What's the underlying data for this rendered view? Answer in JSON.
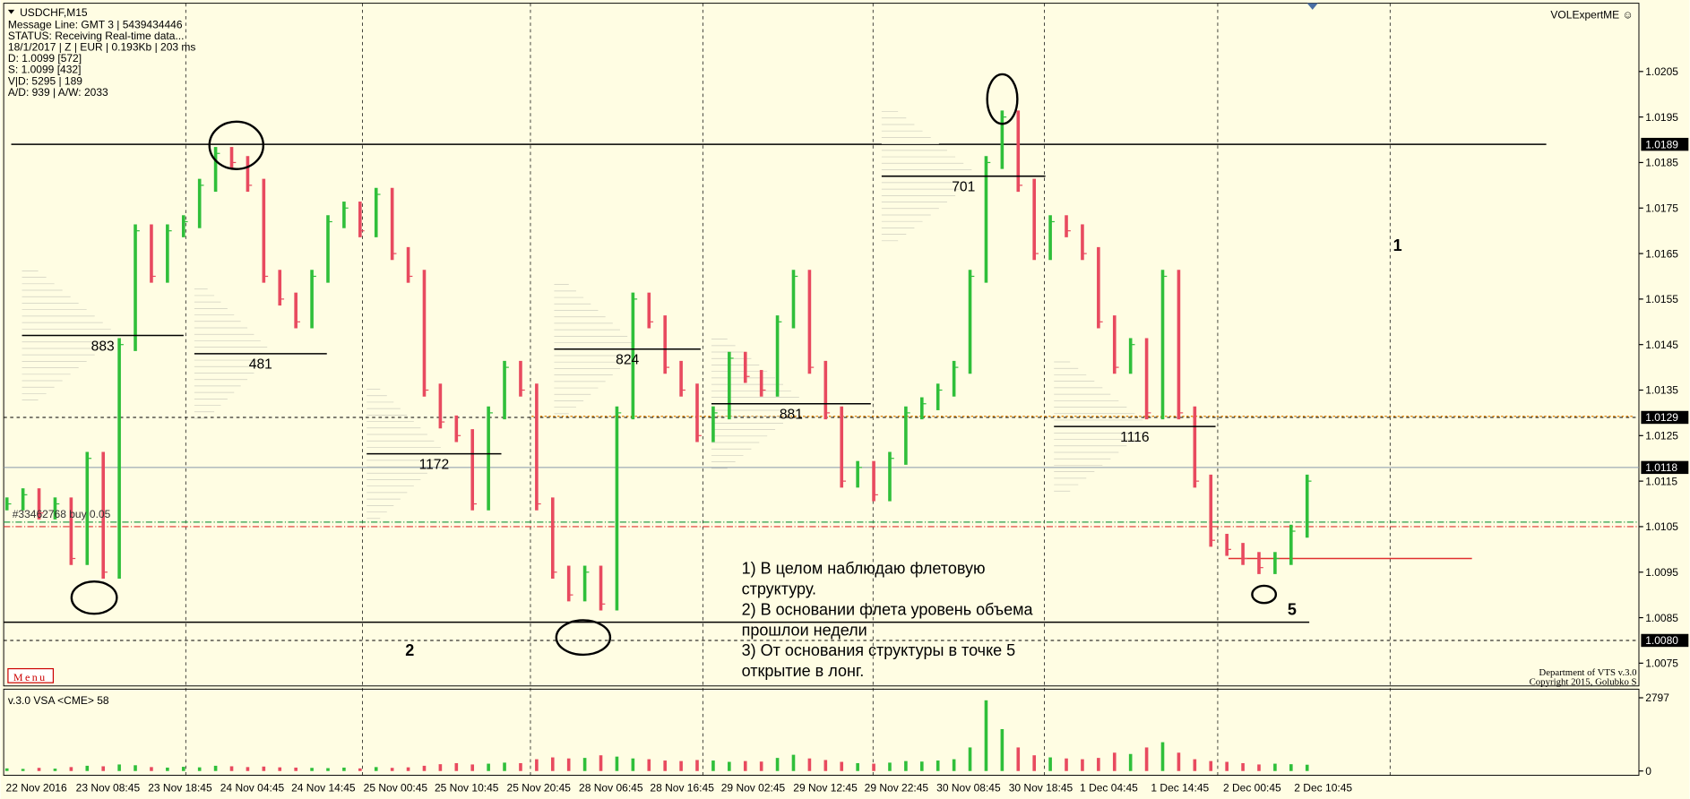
{
  "header": {
    "symbol_timeframe": "USDCHF,M15",
    "info_lines": [
      "Message Line: GMT 3 | 5439434446",
      "STATUS:  Receiving Real-time data...",
      "18/1/2017 | Z | EUR | 0.193Kb | 203 ms",
      "D: 1.0099  [572]",
      "S: 1.0099  [432]",
      "V|D: 5295 | 189",
      "A/D: 939 | A/W: 2033"
    ],
    "indicator": "VOLExpertME ☺"
  },
  "price_axis": {
    "ylim": [
      1.007,
      1.022
    ],
    "yticks": [
      1.0205,
      1.0195,
      1.0185,
      1.0175,
      1.0165,
      1.0155,
      1.0145,
      1.0135,
      1.0125,
      1.0115,
      1.0105,
      1.0095,
      1.0085,
      1.0075
    ],
    "levels": [
      {
        "value": 1.0189,
        "label": "1.0189"
      },
      {
        "value": 1.0129,
        "label": "1.0129"
      },
      {
        "value": 1.0118,
        "label": "1.0118"
      },
      {
        "value": 1.008,
        "label": "1.0080"
      }
    ],
    "base_line": 1.0084,
    "green_line": 1.0106,
    "red_line": 1.0105,
    "red_short_line": 1.0098
  },
  "time_axis": [
    "22 Nov 2016",
    "23 Nov 08:45",
    "23 Nov 18:45",
    "24 Nov 04:45",
    "24 Nov 14:45",
    "25 Nov 00:45",
    "25 Nov 10:45",
    "25 Nov 20:45",
    "28 Nov 06:45",
    "28 Nov 16:45",
    "29 Nov 02:45",
    "29 Nov 12:45",
    "29 Nov 22:45",
    "30 Nov 08:45",
    "30 Nov 18:45",
    "1 Dec 04:45",
    "1 Dec 14:45",
    "2 Dec 00:45",
    "2 Dec 10:45"
  ],
  "price_series": {
    "values": [
      1.011,
      1.0112,
      1.0108,
      1.011,
      1.0098,
      1.012,
      1.0095,
      1.0145,
      1.017,
      1.016,
      1.017,
      1.0172,
      1.018,
      1.0187,
      1.0185,
      1.018,
      1.016,
      1.0155,
      1.015,
      1.016,
      1.0172,
      1.0175,
      1.017,
      1.0178,
      1.0165,
      1.016,
      1.0135,
      1.0128,
      1.0125,
      1.011,
      1.013,
      1.014,
      1.0135,
      1.011,
      1.0095,
      1.009,
      1.0095,
      1.0088,
      1.013,
      1.0155,
      1.015,
      1.014,
      1.0135,
      1.0125,
      1.013,
      1.0142,
      1.0138,
      1.0135,
      1.015,
      1.016,
      1.014,
      1.013,
      1.0115,
      1.0118,
      1.0112,
      1.012,
      1.013,
      1.0132,
      1.0135,
      1.014,
      1.016,
      1.0185,
      1.0195,
      1.018,
      1.0165,
      1.0172,
      1.017,
      1.0165,
      1.015,
      1.014,
      1.0145,
      1.013,
      1.016,
      1.013,
      1.0115,
      1.0102,
      1.01,
      1.0098,
      1.0096,
      1.0098,
      1.0104,
      1.0115
    ]
  },
  "profiles": [
    {
      "volume": 883,
      "price": 1.0147
    },
    {
      "volume": 481,
      "price": 1.0143
    },
    {
      "volume": 1172,
      "price": 1.0121
    },
    {
      "volume": 824,
      "price": 1.0144
    },
    {
      "volume": 881,
      "price": 1.0132
    },
    {
      "volume": 701,
      "price": 1.0182
    },
    {
      "volume": 1116,
      "price": 1.0127
    }
  ],
  "annotations": [
    "1",
    "2",
    "5"
  ],
  "notes": [
    "1) В целом наблюдаю флетовую",
    "структуру.",
    "2) В основании флета уровень объема",
    "прошлои недели",
    "3) От основания структуры в точке 5",
    "открытие в лонг."
  ],
  "order_label": "#33462768 buy 0.05",
  "menu": "Menu",
  "footer": [
    "Department of VTS  v.3.0",
    "Copyright 2015, Golubko S"
  ],
  "volume_panel": {
    "label": "v.3.0 VSA <CME> 58",
    "ylim": [
      0,
      2797
    ],
    "yticks": [
      2797,
      0
    ],
    "values": [
      100,
      80,
      120,
      90,
      150,
      200,
      180,
      250,
      220,
      150,
      130,
      160,
      140,
      200,
      180,
      150,
      170,
      140,
      130,
      120,
      110,
      130,
      100,
      150,
      120,
      140,
      200,
      260,
      300,
      250,
      280,
      320,
      300,
      450,
      520,
      480,
      500,
      600,
      550,
      480,
      450,
      400,
      380,
      420,
      400,
      350,
      380,
      360,
      500,
      620,
      480,
      420,
      350,
      300,
      280,
      320,
      380,
      360,
      400,
      450,
      900,
      2700,
      1600,
      900,
      600,
      520,
      480,
      450,
      500,
      700,
      650,
      900,
      1100,
      700,
      450,
      380,
      350,
      300,
      250,
      280,
      260,
      240
    ]
  }
}
